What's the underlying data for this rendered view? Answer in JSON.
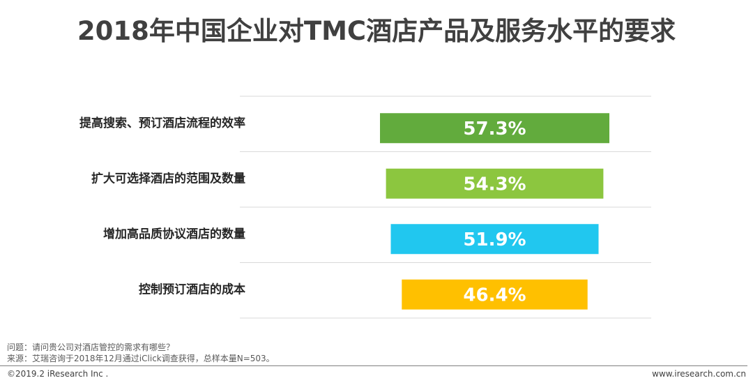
{
  "title": "2018年中国企业对TMC酒店产品及服务水平的要求",
  "chart_data": {
    "type": "bar",
    "orientation": "horizontal-centered",
    "categories": [
      "提高搜索、预订酒店流程的效率",
      "扩大可选择酒店的范围及数量",
      "增加高品质协议酒店的数量",
      "控制预订酒店的成本"
    ],
    "values": [
      57.3,
      54.3,
      51.9,
      46.4
    ],
    "value_labels": [
      "57.3%",
      "54.3%",
      "51.9%",
      "46.4%"
    ],
    "colors": [
      "#62ab3d",
      "#8cc63f",
      "#21c7ef",
      "#ffc000"
    ],
    "grid": true
  },
  "notes": {
    "question": "问题：请问贵公司对酒店管控的需求有哪些？",
    "source": "来源：艾瑞咨询于2018年12月通过iClick调查获得，总样本量N=503。"
  },
  "footer": {
    "copyright": "©2019.2 iResearch Inc .",
    "website": "www.iresearch.com.cn"
  }
}
